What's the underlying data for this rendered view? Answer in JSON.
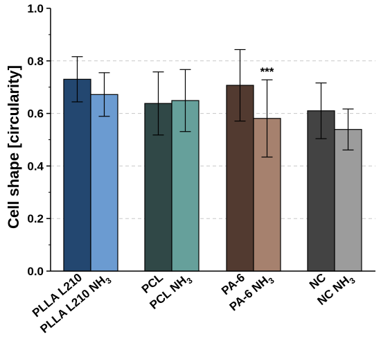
{
  "chart_data": {
    "type": "bar",
    "ylabel": "Cell shape [circularity]",
    "ylim": [
      0.0,
      1.0
    ],
    "yticks": [
      "0.0",
      "0.2",
      "0.4",
      "0.6",
      "0.8",
      "1.0"
    ],
    "grid": "horizontal dashed",
    "legend": "none",
    "categories": [
      {
        "main": "PLLA L210",
        "sub": ""
      },
      {
        "main": "PLLA L210 NH",
        "sub": "3"
      },
      {
        "main": "PCL",
        "sub": ""
      },
      {
        "main": "PCL NH",
        "sub": "3"
      },
      {
        "main": "PA-6",
        "sub": ""
      },
      {
        "main": "PA-6 NH",
        "sub": "3"
      },
      {
        "main": "NC",
        "sub": ""
      },
      {
        "main": "NC NH",
        "sub": "3"
      }
    ],
    "values": [
      0.73,
      0.672,
      0.638,
      0.649,
      0.707,
      0.581,
      0.61,
      0.539
    ],
    "errors": [
      0.086,
      0.083,
      0.12,
      0.118,
      0.136,
      0.147,
      0.106,
      0.078
    ],
    "colors": [
      "#234770",
      "#6b9bd1",
      "#304847",
      "#66a09b",
      "#523a30",
      "#a6816e",
      "#434343",
      "#9c9c9c"
    ],
    "annotations": [
      {
        "category_index": 5,
        "text": "***"
      }
    ]
  }
}
